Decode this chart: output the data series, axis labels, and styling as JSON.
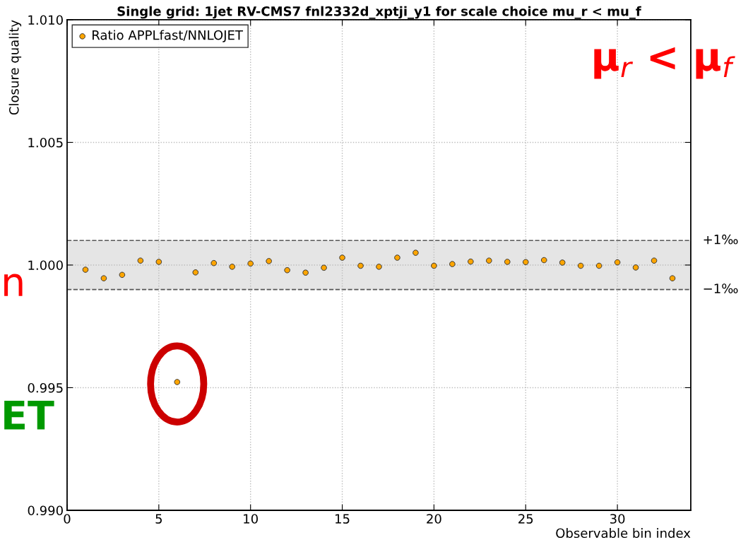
{
  "chart_data": {
    "type": "scatter",
    "title": "Single grid: 1jet RV-CMS7 fnl2332d_xptji_y1 for scale choice mu_r < mu_f",
    "xlabel": "Observable bin index",
    "ylabel": "Closure quality",
    "x": [
      1,
      2,
      3,
      4,
      5,
      6,
      7,
      8,
      9,
      10,
      11,
      12,
      13,
      14,
      15,
      16,
      17,
      18,
      19,
      20,
      21,
      22,
      23,
      24,
      25,
      26,
      27,
      28,
      29,
      30,
      31,
      32,
      33
    ],
    "series": [
      {
        "name": "Ratio APPLfast/NNLOJET",
        "color": "#ffa500",
        "values": [
          0.99981,
          0.99946,
          0.9996,
          1.00018,
          1.00013,
          0.99523,
          0.9997,
          1.00008,
          0.99993,
          1.00006,
          1.00016,
          0.99979,
          0.99969,
          0.99989,
          1.0003,
          0.99997,
          0.99993,
          1.0003,
          1.0005,
          0.99997,
          1.00004,
          1.00014,
          1.00018,
          1.00013,
          1.00012,
          1.0002,
          1.0001,
          0.99997,
          0.99997,
          1.00011,
          0.9999,
          1.00018,
          0.99946
        ]
      }
    ],
    "xlim": [
      0,
      34
    ],
    "xticks": [
      0,
      5,
      10,
      15,
      20,
      25,
      30
    ],
    "ylim": [
      0.99,
      1.01
    ],
    "yticks": [
      {
        "value": 0.99,
        "label": "0.990"
      },
      {
        "value": 0.995,
        "label": "0.995"
      },
      {
        "value": 1.0,
        "label": "1.000"
      },
      {
        "value": 1.005,
        "label": "1.005"
      },
      {
        "value": 1.01,
        "label": "1.010"
      }
    ],
    "ref_lines": [
      {
        "axis": "y",
        "value": 1.001,
        "label": "+1‰",
        "color": "#555555",
        "line_style": "dashed"
      },
      {
        "axis": "y",
        "value": 0.999,
        "label": "−1‰",
        "color": "#555555",
        "line_style": "dashed"
      }
    ],
    "bands": [
      {
        "axis": "y",
        "from": 0.999,
        "to": 1.001,
        "color": "#e5e5e5"
      }
    ],
    "annotations": [
      "μ$_{r}$ < μ$_{f}$",
      "n",
      "ET"
    ],
    "grid": true,
    "legend": "top left",
    "marker": "circle"
  }
}
